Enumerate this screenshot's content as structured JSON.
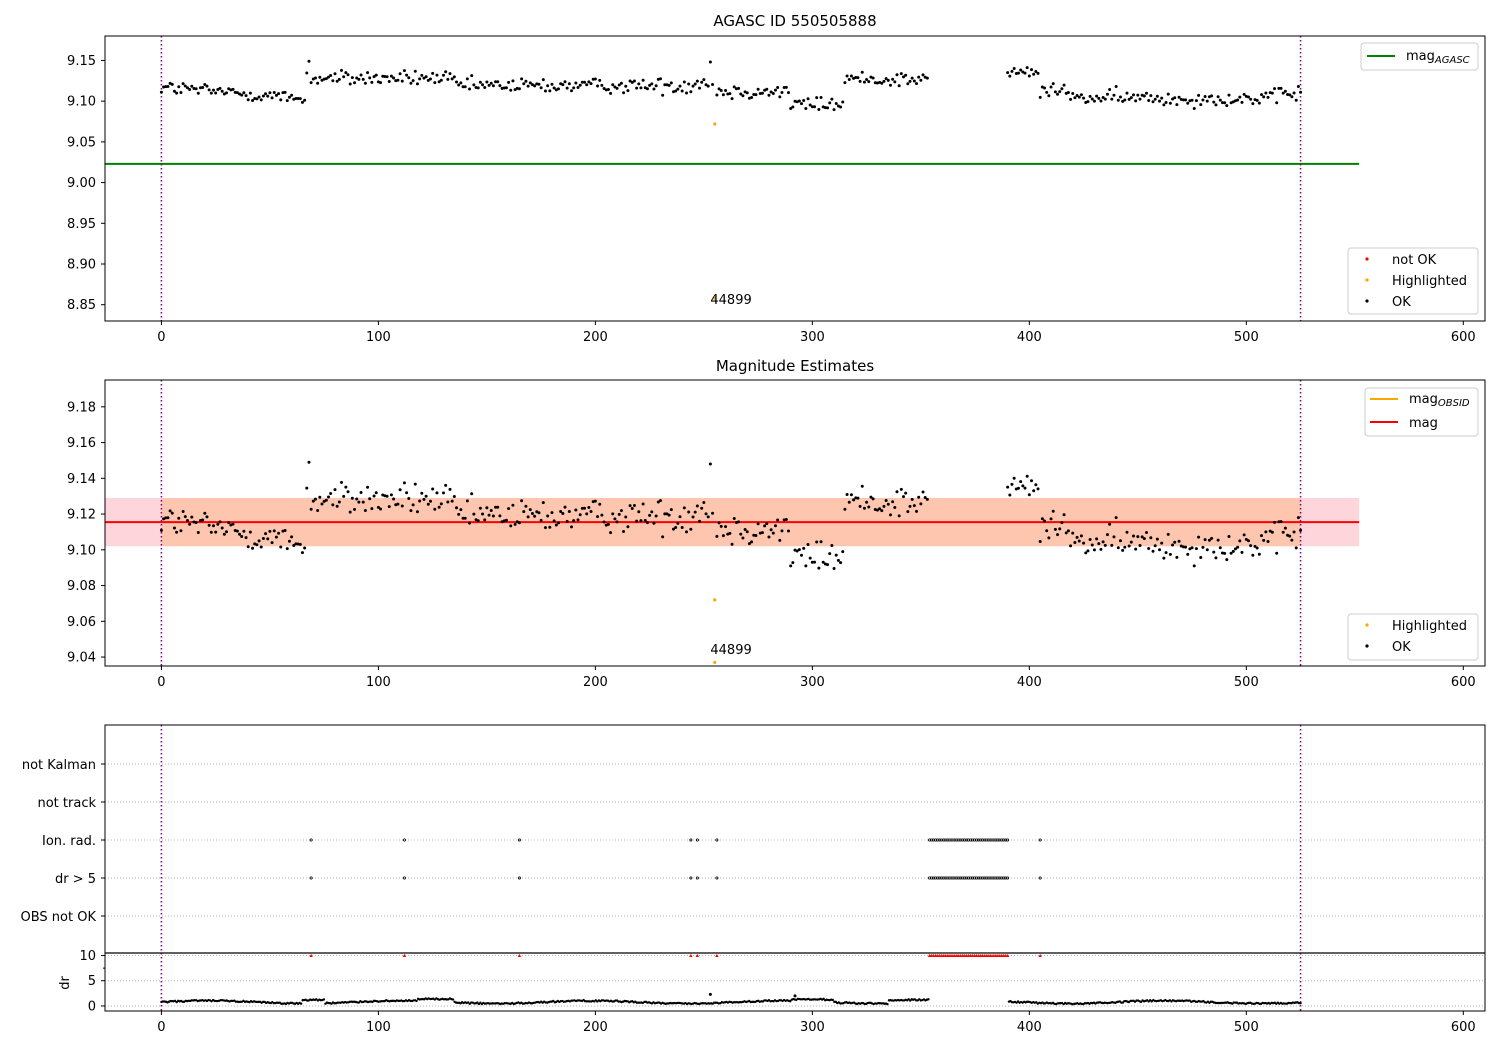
{
  "chart_data": [
    {
      "type": "scatter",
      "title": "AGASC ID 550505888",
      "xlabel": "",
      "ylabel": "",
      "xlim": [
        -26,
        610
      ],
      "ylim": [
        8.83,
        9.18
      ],
      "xticks": [
        "0",
        "100",
        "200",
        "300",
        "400",
        "500",
        "600"
      ],
      "yticks": [
        "8.85",
        "8.90",
        "8.95",
        "9.00",
        "9.05",
        "9.10",
        "9.15"
      ],
      "xtick_values": [
        0,
        100,
        200,
        300,
        400,
        500,
        600
      ],
      "ytick_values": [
        8.85,
        8.9,
        8.95,
        9.0,
        9.05,
        9.1,
        9.15
      ],
      "grid": false,
      "lines": [
        {
          "name": "mag$_{AGASC}$",
          "label_main": "mag",
          "label_sub": "AGASC",
          "value": 9.023,
          "x_range": [
            -26,
            552
          ],
          "color": "#008000"
        }
      ],
      "vlines": [
        {
          "x": 0,
          "color": "#800080"
        },
        {
          "x": 525,
          "color": "#800080"
        }
      ],
      "series": [
        {
          "name": "not OK",
          "color": "#ff0000",
          "points": []
        },
        {
          "name": "Highlighted",
          "color": "#ffa500",
          "points": [
            [
              255,
              9.072
            ],
            [
              255,
              8.858
            ]
          ]
        },
        {
          "name": "OK",
          "color": "#000000",
          "points": "generated"
        }
      ],
      "annotations": [
        {
          "text": "44899",
          "x": 253,
          "y": 8.84
        }
      ],
      "legends": [
        {
          "placement": "top-right",
          "entries": [
            "mag$_{AGASC}$"
          ]
        },
        {
          "placement": "bottom-right",
          "entries": [
            "not OK",
            "Highlighted",
            "OK"
          ]
        }
      ]
    },
    {
      "type": "scatter",
      "title": "Magnitude Estimates",
      "xlabel": "",
      "ylabel": "",
      "xlim": [
        -26,
        610
      ],
      "ylim": [
        9.035,
        9.195
      ],
      "xticks": [
        "0",
        "100",
        "200",
        "300",
        "400",
        "500",
        "600"
      ],
      "yticks": [
        "9.04",
        "9.06",
        "9.08",
        "9.10",
        "9.12",
        "9.14",
        "9.16",
        "9.18"
      ],
      "xtick_values": [
        0,
        100,
        200,
        300,
        400,
        500,
        600
      ],
      "ytick_values": [
        9.04,
        9.06,
        9.08,
        9.1,
        9.12,
        9.14,
        9.16,
        9.18
      ],
      "grid": false,
      "band": {
        "y_range": [
          9.102,
          9.129
        ],
        "x_range": [
          -26,
          552
        ],
        "color": "#ff7b7b"
      },
      "inner_band": {
        "y_range": [
          9.102,
          9.129
        ],
        "x_range": [
          0,
          525
        ],
        "color": "#ffa64d"
      },
      "lines": [
        {
          "name": "mag$_{OBSID}$",
          "label_main": "mag",
          "label_sub": "OBSID",
          "color": "#ffa500",
          "value": null
        },
        {
          "name": "mag",
          "label_main": "mag",
          "color": "#ff0000",
          "value": 9.1155,
          "x_range": [
            -26,
            552
          ]
        }
      ],
      "vlines": [
        {
          "x": 0,
          "color": "#800080"
        },
        {
          "x": 525,
          "color": "#800080"
        }
      ],
      "series": [
        {
          "name": "Highlighted",
          "color": "#ffa500",
          "points": [
            [
              255,
              9.072
            ],
            [
              255,
              9.037
            ]
          ]
        },
        {
          "name": "OK",
          "color": "#000000",
          "points": "generated"
        }
      ],
      "annotations": [
        {
          "text": "44899",
          "x": 253,
          "y": 9.04
        }
      ],
      "legends": [
        {
          "placement": "top-right",
          "entries": [
            "mag$_{OBSID}$",
            "mag"
          ]
        },
        {
          "placement": "bottom-right",
          "entries": [
            "Highlighted",
            "OK"
          ]
        }
      ]
    },
    {
      "type": "scatter",
      "title": "",
      "xlabel": "",
      "ylabel": "",
      "xlim": [
        -26,
        610
      ],
      "categories": [
        "not Kalman",
        "not track",
        "Ion. rad.",
        "dr > 5",
        "OBS not OK"
      ],
      "grid": "dotted horizontal",
      "vlines": [
        {
          "x": 0,
          "color": "#800080"
        },
        {
          "x": 525,
          "color": "#800080"
        }
      ],
      "flag_x": [
        69,
        112,
        165,
        244,
        247,
        256
      ],
      "flag_dense_range": [
        354,
        390
      ],
      "flag_extra_x": [
        405
      ],
      "flag_rows": [
        "Ion. rad.",
        "dr > 5"
      ]
    },
    {
      "type": "scatter",
      "title": "",
      "xlabel": "",
      "ylabel": "dr",
      "xlim": [
        -26,
        610
      ],
      "ylim": [
        -1,
        10.5
      ],
      "xticks": [
        "0",
        "100",
        "200",
        "300",
        "400",
        "500",
        "600"
      ],
      "yticks": [
        "0",
        "5",
        "10"
      ],
      "xtick_values": [
        0,
        100,
        200,
        300,
        400,
        500,
        600
      ],
      "ytick_values": [
        0,
        5,
        10
      ],
      "grid": "dotted horizontal",
      "hline": {
        "y": 10.5,
        "color": "#000000"
      },
      "vlines": [
        {
          "x": 0,
          "color": "#800080"
        },
        {
          "x": 525,
          "color": "#800080"
        }
      ],
      "clipped_marker": {
        "y": 10,
        "color": "#ff0000",
        "marker": "triangle-up"
      },
      "series": [
        {
          "name": "dr",
          "color": "#000000",
          "points": "generated"
        }
      ]
    }
  ]
}
